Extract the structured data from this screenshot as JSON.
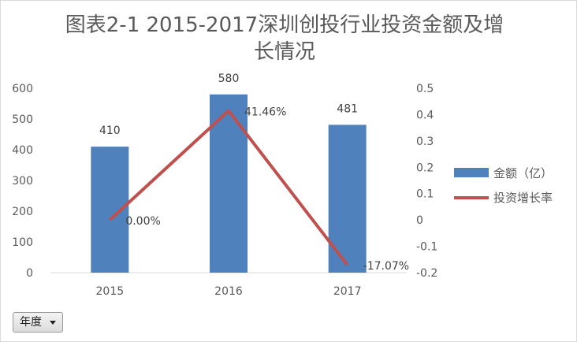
{
  "filter": {
    "label": "年度"
  },
  "chart_data": {
    "type": "bar",
    "title_line1": "图表2-1  2015-2017深圳创投行业投资金额及增",
    "title_line2": "长情况",
    "categories": [
      "2015",
      "2016",
      "2017"
    ],
    "series": [
      {
        "name": "金额（亿）",
        "type": "bar",
        "axis": "left",
        "values": [
          410,
          580,
          481
        ],
        "labels": [
          "410",
          "580",
          "481"
        ],
        "color": "#4f81bd"
      },
      {
        "name": "投资增长率",
        "type": "line",
        "axis": "right",
        "values": [
          0.0,
          0.4146,
          -0.1707
        ],
        "labels": [
          "0.00%",
          "41.46%",
          "-17.07%"
        ],
        "color": "#c0504d"
      }
    ],
    "y_left": {
      "min": 0,
      "max": 600,
      "ticks": [
        "0",
        "100",
        "200",
        "300",
        "400",
        "500",
        "600"
      ]
    },
    "y_right": {
      "min": -0.2,
      "max": 0.5,
      "ticks": [
        "-0.2",
        "-0.1",
        "0",
        "0.1",
        "0.2",
        "0.3",
        "0.4",
        "0.5"
      ]
    },
    "grid": false,
    "legend": "right"
  }
}
